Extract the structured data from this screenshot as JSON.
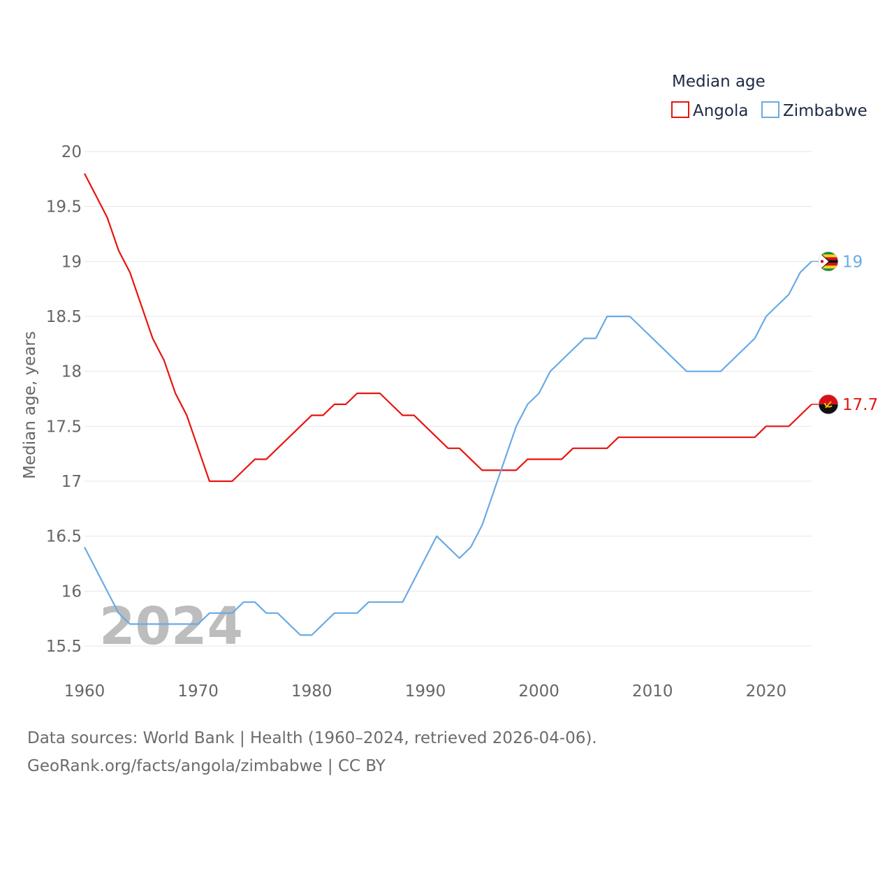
{
  "chart_data": {
    "type": "line",
    "title": "",
    "ylabel": "Median age, years",
    "xlabel": "",
    "ylim": [
      15.5,
      20
    ],
    "xlim": [
      1960,
      2024
    ],
    "yticks": [
      15.5,
      16,
      16.5,
      17,
      17.5,
      18,
      18.5,
      19,
      19.5,
      20
    ],
    "ytick_labels": [
      "15.5",
      "16",
      "16.5",
      "17",
      "17.5",
      "18",
      "18.5",
      "19",
      "19.5",
      "20"
    ],
    "xticks": [
      1960,
      1970,
      1980,
      1990,
      2000,
      2010,
      2020
    ],
    "xtick_labels": [
      "1960",
      "1970",
      "1980",
      "1990",
      "2000",
      "2010",
      "2020"
    ],
    "grid": "horizontal",
    "legend": {
      "title": "Median age",
      "position": "top-right",
      "entries": [
        "Angola",
        "Zimbabwe"
      ]
    },
    "year_watermark": "2024",
    "x": [
      1960,
      1961,
      1962,
      1963,
      1964,
      1965,
      1966,
      1967,
      1968,
      1969,
      1970,
      1971,
      1972,
      1973,
      1974,
      1975,
      1976,
      1977,
      1978,
      1979,
      1980,
      1981,
      1982,
      1983,
      1984,
      1985,
      1986,
      1987,
      1988,
      1989,
      1990,
      1991,
      1992,
      1993,
      1994,
      1995,
      1996,
      1997,
      1998,
      1999,
      2000,
      2001,
      2002,
      2003,
      2004,
      2005,
      2006,
      2007,
      2008,
      2009,
      2010,
      2011,
      2012,
      2013,
      2014,
      2015,
      2016,
      2017,
      2018,
      2019,
      2020,
      2021,
      2022,
      2023,
      2024
    ],
    "series": [
      {
        "name": "Angola",
        "color": "#e8140f",
        "end_label": "17.7",
        "values": [
          19.8,
          19.6,
          19.4,
          19.1,
          18.9,
          18.6,
          18.3,
          18.1,
          17.8,
          17.6,
          17.3,
          17.0,
          17.0,
          17.0,
          17.1,
          17.2,
          17.2,
          17.3,
          17.4,
          17.5,
          17.6,
          17.6,
          17.7,
          17.7,
          17.8,
          17.8,
          17.8,
          17.7,
          17.6,
          17.6,
          17.5,
          17.4,
          17.3,
          17.3,
          17.2,
          17.1,
          17.1,
          17.1,
          17.1,
          17.2,
          17.2,
          17.2,
          17.2,
          17.3,
          17.3,
          17.3,
          17.3,
          17.4,
          17.4,
          17.4,
          17.4,
          17.4,
          17.4,
          17.4,
          17.4,
          17.4,
          17.4,
          17.4,
          17.4,
          17.4,
          17.5,
          17.5,
          17.5,
          17.6,
          17.7
        ]
      },
      {
        "name": "Zimbabwe",
        "color": "#6aaae4",
        "end_label": "19",
        "values": [
          16.4,
          16.2,
          16.0,
          15.8,
          15.7,
          15.7,
          15.7,
          15.7,
          15.7,
          15.7,
          15.7,
          15.8,
          15.8,
          15.8,
          15.9,
          15.9,
          15.8,
          15.8,
          15.7,
          15.6,
          15.6,
          15.7,
          15.8,
          15.8,
          15.8,
          15.9,
          15.9,
          15.9,
          15.9,
          16.1,
          16.3,
          16.5,
          16.4,
          16.3,
          16.4,
          16.6,
          16.9,
          17.2,
          17.5,
          17.7,
          17.8,
          18.0,
          18.1,
          18.2,
          18.3,
          18.3,
          18.5,
          18.5,
          18.5,
          18.4,
          18.3,
          18.2,
          18.1,
          18.0,
          18.0,
          18.0,
          18.0,
          18.1,
          18.2,
          18.3,
          18.5,
          18.6,
          18.7,
          18.9,
          19.0
        ]
      }
    ]
  },
  "footer": {
    "sources": "Data sources: World Bank | Health (1960–2024, retrieved 2026-04-06).",
    "credit": "GeoRank.org/facts/angola/zimbabwe | CC BY"
  }
}
